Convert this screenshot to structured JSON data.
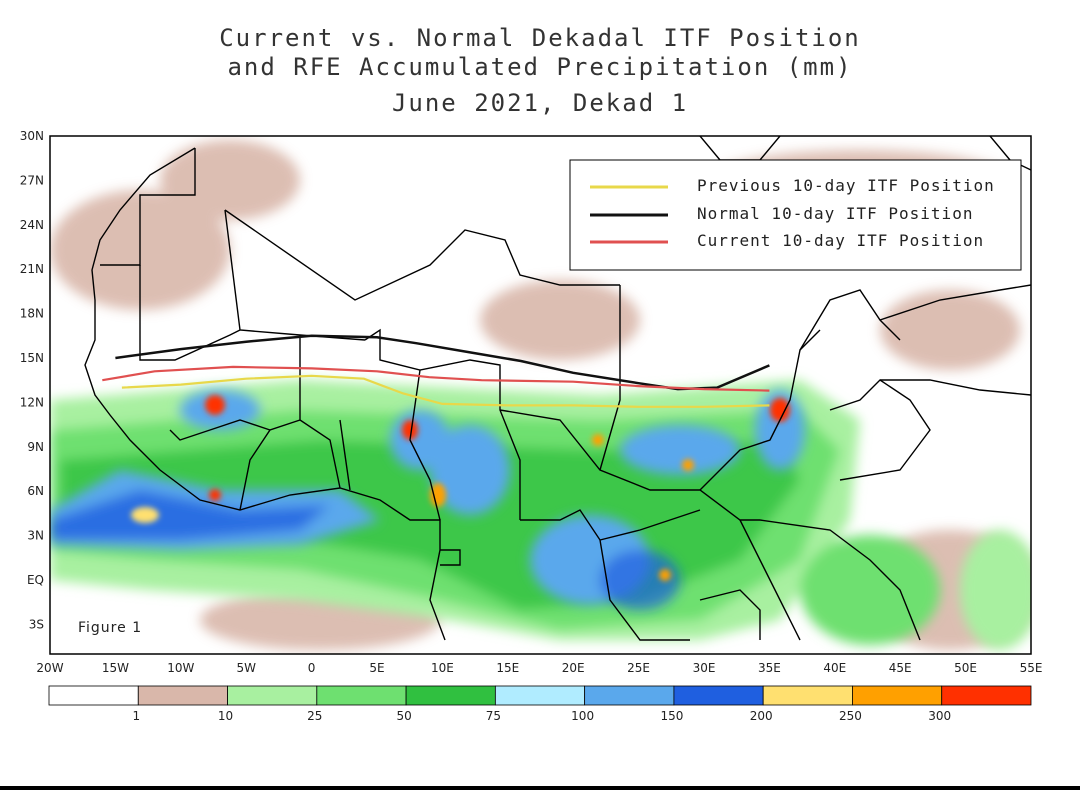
{
  "title": {
    "line1": "Current vs. Normal Dekadal ITF Position",
    "line2": "and RFE Accumulated Precipitation (mm)",
    "line3": "June 2021, Dekad 1"
  },
  "map": {
    "figure_label": "Figure 1",
    "lat_labels": [
      "30N",
      "27N",
      "24N",
      "21N",
      "18N",
      "15N",
      "12N",
      "9N",
      "6N",
      "3N",
      "EQ",
      "3S"
    ],
    "lon_labels": [
      "20W",
      "15W",
      "10W",
      "5W",
      "0",
      "5E",
      "10E",
      "15E",
      "20E",
      "25E",
      "30E",
      "35E",
      "40E",
      "45E",
      "50E",
      "55E"
    ],
    "lat_range": [
      -5,
      30
    ],
    "lon_range": [
      -20,
      55
    ],
    "legend": [
      {
        "label": "Previous 10-day ITF Position",
        "color": "#e8d84a"
      },
      {
        "label": "Normal 10-day ITF Position",
        "color": "#111111"
      },
      {
        "label": "Current 10-day ITF Position",
        "color": "#e05050"
      }
    ],
    "itf_lines": {
      "previous": [
        [
          -14.5,
          13.0
        ],
        [
          -10,
          13.2
        ],
        [
          -5,
          13.6
        ],
        [
          0,
          13.8
        ],
        [
          4,
          13.6
        ],
        [
          7,
          12.6
        ],
        [
          10,
          11.9
        ],
        [
          15,
          11.8
        ],
        [
          20,
          11.8
        ],
        [
          25,
          11.7
        ],
        [
          30,
          11.7
        ],
        [
          35,
          11.8
        ]
      ],
      "normal": [
        [
          -15,
          15.0
        ],
        [
          -10,
          15.6
        ],
        [
          -5,
          16.1
        ],
        [
          0,
          16.5
        ],
        [
          5,
          16.4
        ],
        [
          8,
          16.0
        ],
        [
          12,
          15.4
        ],
        [
          16,
          14.8
        ],
        [
          20,
          14.0
        ],
        [
          25,
          13.3
        ],
        [
          28,
          12.9
        ],
        [
          31,
          13.0
        ],
        [
          35,
          14.5
        ]
      ],
      "current": [
        [
          -16,
          13.5
        ],
        [
          -12,
          14.1
        ],
        [
          -6,
          14.4
        ],
        [
          0,
          14.3
        ],
        [
          5,
          14.1
        ],
        [
          9,
          13.7
        ],
        [
          13,
          13.5
        ],
        [
          20,
          13.4
        ],
        [
          25,
          13.1
        ],
        [
          30,
          12.9
        ],
        [
          35,
          12.8
        ]
      ]
    }
  },
  "colorbar": {
    "labels": [
      "1",
      "10",
      "25",
      "50",
      "75",
      "100",
      "150",
      "200",
      "250",
      "300"
    ],
    "colors": [
      "#ffffff",
      "#d9b7aa",
      "#a8f0a0",
      "#6ee070",
      "#30c040",
      "#b0ecff",
      "#5aa8ec",
      "#1f5fe0",
      "#ffe070",
      "#ffa000",
      "#ff3000"
    ]
  }
}
